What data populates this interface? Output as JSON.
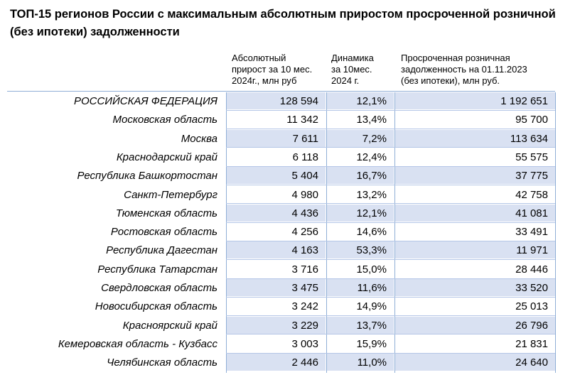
{
  "title": {
    "line1": "ТОП-15 регионов России с максимальным абсолютным приростом просроченной розничной",
    "line2": "(без ипотеки) задолженности"
  },
  "columns": [
    {
      "lines": [
        "Абсолютный",
        "прирост за 10 мес.",
        "2024г., млн руб"
      ]
    },
    {
      "lines": [
        "Динамика",
        "за 10мес.",
        "2024 г."
      ]
    },
    {
      "lines": [
        "Просроченная розничная",
        "задолженность на 01.11.2023",
        "(без ипотеки), млн руб."
      ]
    }
  ],
  "colors": {
    "row_shade": "#d9e1f2",
    "grid": "#8faed6"
  },
  "chart_data": {
    "type": "table",
    "title": "ТОП-15 регионов России с максимальным абсолютным приростом просроченной розничной (без ипотеки) задолженности",
    "columns": [
      "",
      "Абсолютный прирост за 10 мес. 2024г., млн руб",
      "Динамика за 10мес. 2024 г.",
      "Просроченная розничная задолженность на 01.11.2023 (без ипотеки), млн руб."
    ],
    "rows": [
      {
        "region": "РОССИЙСКАЯ ФЕДЕРАЦИЯ",
        "abs": "128 594",
        "dyn": "12,1%",
        "debt": "1 192 651",
        "shaded": true
      },
      {
        "region": "Московская область",
        "abs": "11 342",
        "dyn": "13,4%",
        "debt": "95 700",
        "shaded": false
      },
      {
        "region": "Москва",
        "abs": "7 611",
        "dyn": "7,2%",
        "debt": "113 634",
        "shaded": true
      },
      {
        "region": "Краснодарский край",
        "abs": "6 118",
        "dyn": "12,4%",
        "debt": "55 575",
        "shaded": false
      },
      {
        "region": "Республика Башкортостан",
        "abs": "5 404",
        "dyn": "16,7%",
        "debt": "37 775",
        "shaded": true
      },
      {
        "region": "Санкт-Петербург",
        "abs": "4 980",
        "dyn": "13,2%",
        "debt": "42 758",
        "shaded": false
      },
      {
        "region": "Тюменская область",
        "abs": "4 436",
        "dyn": "12,1%",
        "debt": "41 081",
        "shaded": true
      },
      {
        "region": "Ростовская область",
        "abs": "4 256",
        "dyn": "14,6%",
        "debt": "33 491",
        "shaded": false
      },
      {
        "region": "Республика Дагестан",
        "abs": "4 163",
        "dyn": "53,3%",
        "debt": "11 971",
        "shaded": true
      },
      {
        "region": "Республика Татарстан",
        "abs": "3 716",
        "dyn": "15,0%",
        "debt": "28 446",
        "shaded": false
      },
      {
        "region": "Свердловская область",
        "abs": "3 475",
        "dyn": "11,6%",
        "debt": "33 520",
        "shaded": true
      },
      {
        "region": "Новосибирская область",
        "abs": "3 242",
        "dyn": "14,9%",
        "debt": "25 013",
        "shaded": false
      },
      {
        "region": "Красноярский край",
        "abs": "3 229",
        "dyn": "13,7%",
        "debt": "26 796",
        "shaded": true
      },
      {
        "region": "Кемеровская область - Кузбасс",
        "abs": "3 003",
        "dyn": "15,9%",
        "debt": "21 831",
        "shaded": false
      },
      {
        "region": "Челябинская область",
        "abs": "2 446",
        "dyn": "11,0%",
        "debt": "24 640",
        "shaded": true
      }
    ]
  }
}
